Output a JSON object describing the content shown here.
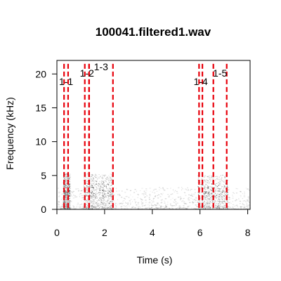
{
  "chart_data": {
    "type": "spectrogram",
    "title": "100041.filtered1.wav",
    "xlabel": "Time (s)",
    "ylabel": "Frequency (kHz)",
    "xlim": [
      0,
      8.1
    ],
    "ylim": [
      0,
      22
    ],
    "xticks": [
      0,
      2,
      4,
      6,
      8
    ],
    "yticks": [
      0,
      5,
      10,
      15,
      20
    ],
    "grid": false,
    "marker_color": "#e8000b",
    "segments": [
      {
        "label": "1-1",
        "start": 0.3,
        "end": 0.47
      },
      {
        "label": "1-2",
        "start": 1.17,
        "end": 1.35
      },
      {
        "label": "1-3",
        "start": 1.35,
        "end": 2.35
      },
      {
        "label": "1-4",
        "start": 5.96,
        "end": 6.1
      },
      {
        "label": "1-5",
        "start": 6.56,
        "end": 7.12
      }
    ],
    "energy_blobs": [
      {
        "t0": 0.25,
        "t1": 0.55,
        "f0": 0.0,
        "f1": 5.2,
        "intensity": 0.45
      },
      {
        "t0": 1.1,
        "t1": 2.35,
        "f0": 0.0,
        "f1": 5.2,
        "intensity": 0.55
      },
      {
        "t0": 5.9,
        "t1": 7.15,
        "f0": 0.0,
        "f1": 5.0,
        "intensity": 0.55
      }
    ]
  }
}
